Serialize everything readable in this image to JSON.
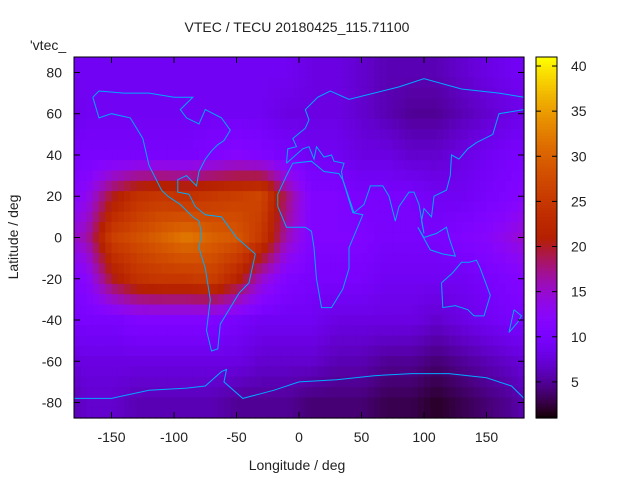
{
  "chart_data": {
    "type": "heatmap",
    "title": "VTEC / TECU 20180425_115.71100",
    "xlabel": "Longitude / deg",
    "ylabel": "Latitude / deg",
    "legend_entry": "'vtec_",
    "legend_placement": "top-left",
    "xlim": [
      -180,
      180
    ],
    "ylim": [
      -87.5,
      87.5
    ],
    "xticks": [
      -150,
      -100,
      -50,
      0,
      50,
      100,
      150
    ],
    "yticks": [
      -80,
      -60,
      -40,
      -20,
      0,
      20,
      40,
      60,
      80
    ],
    "colorbar": {
      "range": [
        1,
        41
      ],
      "ticks": [
        5,
        10,
        15,
        20,
        25,
        30,
        35,
        40
      ],
      "colormap": "black-purple-red-yellow"
    },
    "grid": false,
    "lon_centers": [
      -170,
      -150,
      -130,
      -110,
      -90,
      -70,
      -50,
      -30,
      -10,
      10,
      30,
      50,
      70,
      90,
      110,
      130,
      150,
      170
    ],
    "lat_centers": [
      80,
      60,
      40,
      20,
      0,
      -20,
      -40,
      -60,
      -80
    ],
    "values": [
      [
        9,
        9,
        9,
        9,
        9,
        9,
        9,
        9,
        9,
        8,
        8,
        7,
        6,
        6,
        6,
        7,
        8,
        9
      ],
      [
        9,
        9,
        9,
        9,
        9,
        9,
        9,
        9,
        8,
        8,
        8,
        7,
        6,
        5,
        5,
        6,
        7,
        8
      ],
      [
        10,
        10,
        10,
        10,
        10,
        11,
        12,
        11,
        10,
        9,
        9,
        8,
        8,
        7,
        7,
        8,
        9,
        10
      ],
      [
        13,
        20,
        24,
        25,
        24,
        25,
        26,
        27,
        18,
        11,
        11,
        10,
        10,
        10,
        9,
        9,
        10,
        11
      ],
      [
        16,
        26,
        28,
        30,
        32,
        30,
        29,
        25,
        16,
        11,
        11,
        11,
        10,
        10,
        10,
        11,
        12,
        14
      ],
      [
        12,
        20,
        24,
        25,
        25,
        26,
        22,
        15,
        11,
        10,
        10,
        10,
        9,
        9,
        9,
        9,
        10,
        11
      ],
      [
        10,
        10,
        11,
        11,
        11,
        11,
        10,
        9,
        9,
        9,
        8,
        8,
        8,
        8,
        7,
        8,
        9,
        10
      ],
      [
        8,
        8,
        8,
        8,
        8,
        8,
        8,
        7,
        7,
        7,
        6,
        6,
        5,
        5,
        4,
        5,
        6,
        7
      ],
      [
        7,
        7,
        6,
        6,
        6,
        6,
        5,
        5,
        5,
        4,
        4,
        4,
        3,
        3,
        2,
        3,
        4,
        5
      ]
    ],
    "coastline_color": "#00aaff"
  }
}
